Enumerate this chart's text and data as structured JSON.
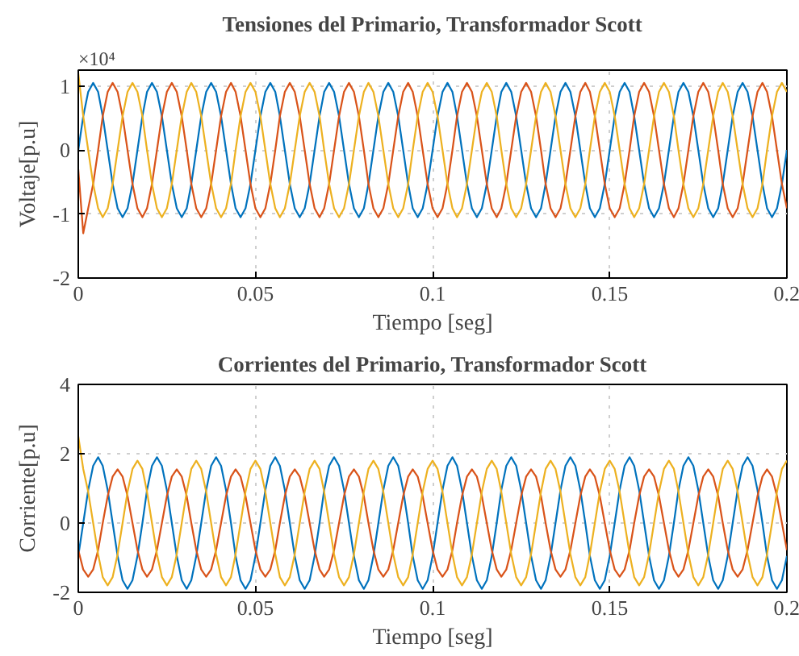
{
  "chart_data": [
    {
      "type": "line",
      "title": "Tensiones del Primario, Transformador Scott",
      "xlabel": "Tiempo [seg]",
      "ylabel": "Voltaje[p.u]",
      "annotations": [
        "×10⁴"
      ],
      "x": [
        0,
        0.0014,
        0.0028,
        0.0042,
        0.0056,
        0.0069,
        0.0083,
        0.0097,
        0.0111,
        0.0125,
        0.0139,
        0.0153,
        0.0167,
        0.0181,
        0.0194,
        0.0208,
        0.0222,
        0.0236,
        0.025,
        0.0264,
        0.0278,
        0.0292,
        0.0306,
        0.0319,
        0.0333,
        0.0347,
        0.0361,
        0.0375,
        0.0389,
        0.0403,
        0.0417,
        0.0431,
        0.0444,
        0.0458,
        0.0472,
        0.0486,
        0.05,
        0.0514,
        0.0528,
        0.0542,
        0.0556,
        0.0569,
        0.0583,
        0.0597,
        0.0611,
        0.0625,
        0.0639,
        0.0653,
        0.0667,
        0.0681,
        0.0694,
        0.0708,
        0.0722,
        0.0736,
        0.075,
        0.0764,
        0.0778,
        0.0792,
        0.0806,
        0.0819,
        0.0833,
        0.0847,
        0.0861,
        0.0875,
        0.0889,
        0.0903,
        0.0917,
        0.0931,
        0.0944,
        0.0958,
        0.0972,
        0.0986,
        0.1,
        0.1014,
        0.1028,
        0.1042,
        0.1056,
        0.1069,
        0.1083,
        0.1097,
        0.1111,
        0.1125,
        0.1139,
        0.1153,
        0.1167,
        0.1181,
        0.1194,
        0.1208,
        0.1222,
        0.1236,
        0.125,
        0.1264,
        0.1278,
        0.1292,
        0.1306,
        0.1319,
        0.1333,
        0.1347,
        0.1361,
        0.1375,
        0.1389,
        0.1403,
        0.1417,
        0.1431,
        0.1444,
        0.1458,
        0.1472,
        0.1486,
        0.15,
        0.1514,
        0.1528,
        0.1542,
        0.1556,
        0.1569,
        0.1583,
        0.1597,
        0.1611,
        0.1625,
        0.1639,
        0.1653,
        0.1667,
        0.1681,
        0.1694,
        0.1708,
        0.1722,
        0.1736,
        0.175,
        0.1764,
        0.1778,
        0.1792,
        0.1806,
        0.1819,
        0.1833,
        0.1847,
        0.1861,
        0.1875,
        0.1889,
        0.1903,
        0.1917,
        0.1931,
        0.1944,
        0.1958,
        0.1972,
        0.1986,
        0.2
      ],
      "series": [
        {
          "color": "#0072bd",
          "values": [
            0,
            0.53,
            0.91,
            1.05,
            0.91,
            0.53,
            0,
            -0.53,
            -0.91,
            -1.05,
            -0.91,
            -0.53,
            0,
            0.53,
            0.91,
            1.05,
            0.91,
            0.53,
            0,
            -0.53,
            -0.91,
            -1.05,
            -0.91,
            -0.53,
            0,
            0.53,
            0.91,
            1.05,
            0.91,
            0.53,
            0,
            -0.53,
            -0.91,
            -1.05,
            -0.91,
            -0.53,
            0,
            0.53,
            0.91,
            1.05,
            0.91,
            0.53,
            0,
            -0.53,
            -0.91,
            -1.05,
            -0.91,
            -0.53,
            0,
            0.53,
            0.91,
            1.05,
            0.91,
            0.53,
            0,
            -0.53,
            -0.91,
            -1.05,
            -0.91,
            -0.53,
            0,
            0.53,
            0.91,
            1.05,
            0.91,
            0.53,
            0,
            -0.53,
            -0.91,
            -1.05,
            -0.91,
            -0.53,
            0,
            0.53,
            0.91,
            1.05,
            0.91,
            0.53,
            0,
            -0.53,
            -0.91,
            -1.05,
            -0.91,
            -0.53,
            0,
            0.53,
            0.91,
            1.05,
            0.91,
            0.53,
            0,
            -0.53,
            -0.91,
            -1.05,
            -0.91,
            -0.53,
            0,
            0.53,
            0.91,
            1.05,
            0.91,
            0.53,
            0,
            -0.53,
            -0.91,
            -1.05,
            -0.91,
            -0.53,
            0,
            0.53,
            0.91,
            1.05,
            0.91,
            0.53,
            0,
            -0.53,
            -0.91,
            -1.05,
            -0.91,
            -0.53,
            0,
            0.53,
            0.91,
            1.05,
            0.91,
            0.53,
            0,
            -0.53,
            -0.91,
            -1.05,
            -0.91,
            -0.53,
            0,
            0.53,
            0.91,
            1.05,
            0.91,
            0.53,
            0,
            -0.53,
            -0.91,
            -1.05,
            -0.91,
            -0.53,
            0
          ]
        },
        {
          "color": "#d95319",
          "values": [
            -0.3,
            -1.3,
            -0.91,
            -0.53,
            0,
            0.53,
            0.91,
            1.05,
            0.91,
            0.53,
            0,
            -0.53,
            -0.91,
            -1.05,
            -0.91,
            -0.53,
            0,
            0.53,
            0.91,
            1.05,
            0.91,
            0.53,
            0,
            -0.53,
            -0.91,
            -1.05,
            -0.91,
            -0.53,
            0,
            0.53,
            0.91,
            1.05,
            0.91,
            0.53,
            0,
            -0.53,
            -0.91,
            -1.05,
            -0.91,
            -0.53,
            0,
            0.53,
            0.91,
            1.05,
            0.91,
            0.53,
            0,
            -0.53,
            -0.91,
            -1.05,
            -0.91,
            -0.53,
            0,
            0.53,
            0.91,
            1.05,
            0.91,
            0.53,
            0,
            -0.53,
            -0.91,
            -1.05,
            -0.91,
            -0.53,
            0,
            0.53,
            0.91,
            1.05,
            0.91,
            0.53,
            0,
            -0.53,
            -0.91,
            -1.05,
            -0.91,
            -0.53,
            0,
            0.53,
            0.91,
            1.05,
            0.91,
            0.53,
            0,
            -0.53,
            -0.91,
            -1.05,
            -0.91,
            -0.53,
            0,
            0.53,
            0.91,
            1.05,
            0.91,
            0.53,
            0,
            -0.53,
            -0.91,
            -1.05,
            -0.91,
            -0.53,
            0,
            0.53,
            0.91,
            1.05,
            0.91,
            0.53,
            0,
            -0.53,
            -0.91,
            -1.05,
            -0.91,
            -0.53,
            0,
            0.53,
            0.91,
            1.05,
            0.91,
            0.53,
            0,
            -0.53,
            -0.91,
            -1.05,
            -0.91,
            -0.53,
            0,
            0.53,
            0.91,
            1.05,
            0.91,
            0.53,
            0,
            -0.53,
            -0.91,
            -1.05,
            -0.91,
            -0.53,
            0,
            0.53,
            0.91,
            1.05,
            0.91,
            0.53,
            0,
            -0.53,
            -0.91
          ]
        },
        {
          "color": "#edb120",
          "values": [
            1.2,
            0.53,
            0,
            -0.53,
            -0.91,
            -1.05,
            -0.91,
            -0.53,
            0,
            0.53,
            0.91,
            1.05,
            0.91,
            0.53,
            0,
            -0.53,
            -0.91,
            -1.05,
            -0.91,
            -0.53,
            0,
            0.53,
            0.91,
            1.05,
            0.91,
            0.53,
            0,
            -0.53,
            -0.91,
            -1.05,
            -0.91,
            -0.53,
            0,
            0.53,
            0.91,
            1.05,
            0.91,
            0.53,
            0,
            -0.53,
            -0.91,
            -1.05,
            -0.91,
            -0.53,
            0,
            0.53,
            0.91,
            1.05,
            0.91,
            0.53,
            0,
            -0.53,
            -0.91,
            -1.05,
            -0.91,
            -0.53,
            0,
            0.53,
            0.91,
            1.05,
            0.91,
            0.53,
            0,
            -0.53,
            -0.91,
            -1.05,
            -0.91,
            -0.53,
            0,
            0.53,
            0.91,
            1.05,
            0.91,
            0.53,
            0,
            -0.53,
            -0.91,
            -1.05,
            -0.91,
            -0.53,
            0,
            0.53,
            0.91,
            1.05,
            0.91,
            0.53,
            0,
            -0.53,
            -0.91,
            -1.05,
            -0.91,
            -0.53,
            0,
            0.53,
            0.91,
            1.05,
            0.91,
            0.53,
            0,
            -0.53,
            -0.91,
            -1.05,
            -0.91,
            -0.53,
            0,
            0.53,
            0.91,
            1.05,
            0.91,
            0.53,
            0,
            -0.53,
            -0.91,
            -1.05,
            -0.91,
            -0.53,
            0,
            0.53,
            0.91,
            1.05,
            0.91,
            0.53,
            0,
            -0.53,
            -0.91,
            -1.05,
            -0.91,
            -0.53,
            0,
            0.53,
            0.91,
            1.05,
            0.91,
            0.53,
            0,
            -0.53,
            -0.91,
            -1.05,
            -0.91,
            -0.53,
            0,
            0.53,
            0.91,
            1.05,
            0.91
          ]
        }
      ],
      "xlim": [
        0,
        0.2
      ],
      "ylim": [
        -2,
        1.25
      ],
      "xticks": [
        0,
        0.05,
        0.1,
        0.15,
        0.2
      ],
      "yticks": [
        -2,
        -1,
        0,
        1
      ],
      "grid": true
    },
    {
      "type": "line",
      "title": "Corrientes del Primario, Transformador Scott",
      "xlabel": "Tiempo [seg]",
      "ylabel": "Corriente[p.u]",
      "x": [
        0,
        0.0014,
        0.0028,
        0.0042,
        0.0056,
        0.0069,
        0.0083,
        0.0097,
        0.0111,
        0.0125,
        0.0139,
        0.0153,
        0.0167,
        0.0181,
        0.0194,
        0.0208,
        0.0222,
        0.0236,
        0.025,
        0.0264,
        0.0278,
        0.0292,
        0.0306,
        0.0319,
        0.0333,
        0.0347,
        0.0361,
        0.0375,
        0.0389,
        0.0403,
        0.0417,
        0.0431,
        0.0444,
        0.0458,
        0.0472,
        0.0486,
        0.05,
        0.0514,
        0.0528,
        0.0542,
        0.0556,
        0.0569,
        0.0583,
        0.0597,
        0.0611,
        0.0625,
        0.0639,
        0.0653,
        0.0667,
        0.0681,
        0.0694,
        0.0708,
        0.0722,
        0.0736,
        0.075,
        0.0764,
        0.0778,
        0.0792,
        0.0806,
        0.0819,
        0.0833,
        0.0847,
        0.0861,
        0.0875,
        0.0889,
        0.0903,
        0.0917,
        0.0931,
        0.0944,
        0.0958,
        0.0972,
        0.0986,
        0.1,
        0.1014,
        0.1028,
        0.1042,
        0.1056,
        0.1069,
        0.1083,
        0.1097,
        0.1111,
        0.1125,
        0.1139,
        0.1153,
        0.1167,
        0.1181,
        0.1194,
        0.1208,
        0.1222,
        0.1236,
        0.125,
        0.1264,
        0.1278,
        0.1292,
        0.1306,
        0.1319,
        0.1333,
        0.1347,
        0.1361,
        0.1375,
        0.1389,
        0.1403,
        0.1417,
        0.1431,
        0.1444,
        0.1458,
        0.1472,
        0.1486,
        0.15,
        0.1514,
        0.1528,
        0.1542,
        0.1556,
        0.1569,
        0.1583,
        0.1597,
        0.1611,
        0.1625,
        0.1639,
        0.1653,
        0.1667,
        0.1681,
        0.1694,
        0.1708,
        0.1722,
        0.1736,
        0.175,
        0.1764,
        0.1778,
        0.1792,
        0.1806,
        0.1819,
        0.1833,
        0.1847,
        0.1861,
        0.1875,
        0.1889,
        0.1903,
        0.1917,
        0.1931,
        0.1944,
        0.1958,
        0.1972,
        0.1986,
        0.2
      ],
      "series": [
        {
          "color": "#0072bd",
          "values": [
            -0.95,
            0,
            0.95,
            1.65,
            1.9,
            1.65,
            0.95,
            0,
            -0.95,
            -1.65,
            -1.9,
            -1.65,
            -0.95,
            0,
            0.95,
            1.65,
            1.9,
            1.65,
            0.95,
            0,
            -0.95,
            -1.65,
            -1.9,
            -1.65,
            -0.95,
            0,
            0.95,
            1.65,
            1.9,
            1.65,
            0.95,
            0,
            -0.95,
            -1.65,
            -1.9,
            -1.65,
            -0.95,
            0,
            0.95,
            1.65,
            1.9,
            1.65,
            0.95,
            0,
            -0.95,
            -1.65,
            -1.9,
            -1.65,
            -0.95,
            0,
            0.95,
            1.65,
            1.9,
            1.65,
            0.95,
            0,
            -0.95,
            -1.65,
            -1.9,
            -1.65,
            -0.95,
            0,
            0.95,
            1.65,
            1.9,
            1.65,
            0.95,
            0,
            -0.95,
            -1.65,
            -1.9,
            -1.65,
            -0.95,
            0,
            0.95,
            1.65,
            1.9,
            1.65,
            0.95,
            0,
            -0.95,
            -1.65,
            -1.9,
            -1.65,
            -0.95,
            0,
            0.95,
            1.65,
            1.9,
            1.65,
            0.95,
            0,
            -0.95,
            -1.65,
            -1.9,
            -1.65,
            -0.95,
            0,
            0.95,
            1.65,
            1.9,
            1.65,
            0.95,
            0,
            -0.95,
            -1.65,
            -1.9,
            -1.65,
            -0.95,
            0,
            0.95,
            1.65,
            1.9,
            1.65,
            0.95,
            0,
            -0.95,
            -1.65,
            -1.9,
            -1.65,
            -0.95,
            0,
            0.95,
            1.65,
            1.9,
            1.65,
            0.95,
            0,
            -0.95,
            -1.65,
            -1.9,
            -1.65,
            -0.95,
            0,
            0.95,
            1.65,
            1.9,
            1.65,
            0.95,
            0,
            -0.95,
            -1.65,
            -1.9,
            -1.65,
            -0.95
          ]
        },
        {
          "color": "#d95319",
          "values": [
            -0.78,
            -1.34,
            -1.55,
            -1.34,
            -0.78,
            0,
            0.78,
            1.34,
            1.55,
            1.34,
            0.78,
            0,
            -0.78,
            -1.34,
            -1.55,
            -1.34,
            -0.78,
            0,
            0.78,
            1.34,
            1.55,
            1.34,
            0.78,
            0,
            -0.78,
            -1.34,
            -1.55,
            -1.34,
            -0.78,
            0,
            0.78,
            1.34,
            1.55,
            1.34,
            0.78,
            0,
            -0.78,
            -1.34,
            -1.55,
            -1.34,
            -0.78,
            0,
            0.78,
            1.34,
            1.55,
            1.34,
            0.78,
            0,
            -0.78,
            -1.34,
            -1.55,
            -1.34,
            -0.78,
            0,
            0.78,
            1.34,
            1.55,
            1.34,
            0.78,
            0,
            -0.78,
            -1.34,
            -1.55,
            -1.34,
            -0.78,
            0,
            0.78,
            1.34,
            1.55,
            1.34,
            0.78,
            0,
            -0.78,
            -1.34,
            -1.55,
            -1.34,
            -0.78,
            0,
            0.78,
            1.34,
            1.55,
            1.34,
            0.78,
            0,
            -0.78,
            -1.34,
            -1.55,
            -1.34,
            -0.78,
            0,
            0.78,
            1.34,
            1.55,
            1.34,
            0.78,
            0,
            -0.78,
            -1.34,
            -1.55,
            -1.34,
            -0.78,
            0,
            0.78,
            1.34,
            1.55,
            1.34,
            0.78,
            0,
            -0.78,
            -1.34,
            -1.55,
            -1.34,
            -0.78,
            0,
            0.78,
            1.34,
            1.55,
            1.34,
            0.78,
            0,
            -0.78,
            -1.34,
            -1.55,
            -1.34,
            -0.78,
            0,
            0.78,
            1.34,
            1.55,
            1.34,
            0.78,
            0,
            -0.78,
            -1.34,
            -1.55,
            -1.34,
            -0.78,
            0,
            0.78,
            1.34,
            1.55,
            1.34,
            0.78,
            0,
            -0.78
          ]
        },
        {
          "color": "#edb120",
          "values": [
            2.5,
            1.56,
            0.9,
            0,
            -0.9,
            -1.56,
            -1.8,
            -1.56,
            -0.9,
            0,
            0.9,
            1.56,
            1.8,
            1.56,
            0.9,
            0,
            -0.9,
            -1.56,
            -1.8,
            -1.56,
            -0.9,
            0,
            0.9,
            1.56,
            1.8,
            1.56,
            0.9,
            0,
            -0.9,
            -1.56,
            -1.8,
            -1.56,
            -0.9,
            0,
            0.9,
            1.56,
            1.8,
            1.56,
            0.9,
            0,
            -0.9,
            -1.56,
            -1.8,
            -1.56,
            -0.9,
            0,
            0.9,
            1.56,
            1.8,
            1.56,
            0.9,
            0,
            -0.9,
            -1.56,
            -1.8,
            -1.56,
            -0.9,
            0,
            0.9,
            1.56,
            1.8,
            1.56,
            0.9,
            0,
            -0.9,
            -1.56,
            -1.8,
            -1.56,
            -0.9,
            0,
            0.9,
            1.56,
            1.8,
            1.56,
            0.9,
            0,
            -0.9,
            -1.56,
            -1.8,
            -1.56,
            -0.9,
            0,
            0.9,
            1.56,
            1.8,
            1.56,
            0.9,
            0,
            -0.9,
            -1.56,
            -1.8,
            -1.56,
            -0.9,
            0,
            0.9,
            1.56,
            1.8,
            1.56,
            0.9,
            0,
            -0.9,
            -1.56,
            -1.8,
            -1.56,
            -0.9,
            0,
            0.9,
            1.56,
            1.8,
            1.56,
            0.9,
            0,
            -0.9,
            -1.56,
            -1.8,
            -1.56,
            -0.9,
            0,
            0.9,
            1.56,
            1.8,
            1.56,
            0.9,
            0,
            -0.9,
            -1.56,
            -1.8,
            -1.56,
            -0.9,
            0,
            0.9,
            1.56,
            1.8,
            1.56,
            0.9,
            0,
            -0.9,
            -1.56,
            -1.8,
            -1.56,
            -0.9,
            0,
            0.9,
            1.56,
            1.8
          ]
        }
      ],
      "xlim": [
        0,
        0.2
      ],
      "ylim": [
        -2,
        4
      ],
      "xticks": [
        0,
        0.05,
        0.1,
        0.15,
        0.2
      ],
      "yticks": [
        -2,
        0,
        2,
        4
      ],
      "grid": true
    }
  ]
}
